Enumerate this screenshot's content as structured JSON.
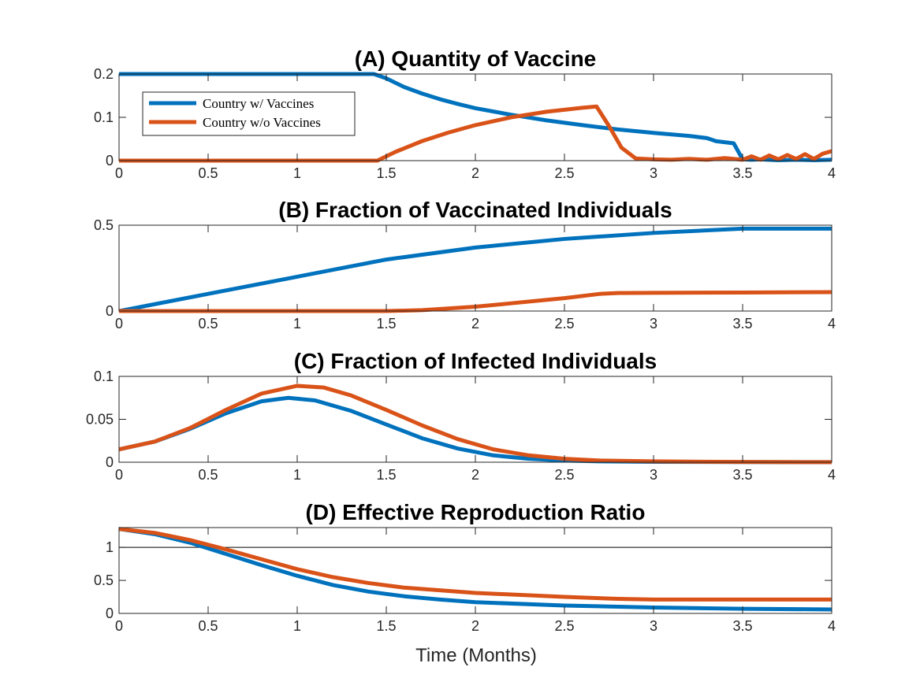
{
  "series_colors": {
    "with": "#0072BD",
    "without": "#D95319"
  },
  "legend": {
    "with": "Country w/ Vaccines",
    "without": "Country w/o Vaccines"
  },
  "xlabel": "Time (Months)",
  "chart_data": [
    {
      "type": "line",
      "title": "(A) Quantity of Vaccine",
      "xlim": [
        0,
        4
      ],
      "ylim": [
        0,
        0.2
      ],
      "xticks": [
        0,
        0.5,
        1,
        1.5,
        2,
        2.5,
        3,
        3.5,
        4
      ],
      "xtick_labels": [
        "0",
        "0.5",
        "1",
        "1.5",
        "2",
        "2.5",
        "3",
        "3.5",
        "4"
      ],
      "yticks": [
        0,
        0.1,
        0.2
      ],
      "ytick_labels": [
        "0",
        "0.1",
        "0.2"
      ],
      "legend_position": "top-left",
      "series": [
        {
          "name": "Country w/ Vaccines",
          "key": "with",
          "x": [
            0,
            1.43,
            1.5,
            1.6,
            1.7,
            1.8,
            1.9,
            2.0,
            2.2,
            2.4,
            2.6,
            2.8,
            3.0,
            3.2,
            3.3,
            3.35,
            3.45,
            3.5,
            3.55,
            3.6,
            3.7,
            3.8,
            3.9,
            4.0
          ],
          "y": [
            0.2,
            0.2,
            0.19,
            0.17,
            0.155,
            0.142,
            0.131,
            0.121,
            0.106,
            0.093,
            0.082,
            0.072,
            0.064,
            0.057,
            0.052,
            0.045,
            0.04,
            0.003,
            0.002,
            0.003,
            0.001,
            0.002,
            0.001,
            0.002
          ]
        },
        {
          "name": "Country w/o Vaccines",
          "key": "without",
          "x": [
            0,
            1.45,
            1.55,
            1.7,
            1.85,
            2.0,
            2.2,
            2.4,
            2.6,
            2.68,
            2.75,
            2.82,
            2.9,
            3.0,
            3.1,
            3.2,
            3.3,
            3.4,
            3.5,
            3.55,
            3.6,
            3.65,
            3.7,
            3.75,
            3.8,
            3.85,
            3.9,
            3.95,
            4.0
          ],
          "y": [
            0,
            0,
            0.02,
            0.045,
            0.065,
            0.082,
            0.1,
            0.113,
            0.122,
            0.125,
            0.08,
            0.03,
            0.005,
            0.003,
            0.002,
            0.004,
            0.002,
            0.006,
            0.002,
            0.01,
            0.002,
            0.012,
            0.003,
            0.013,
            0.004,
            0.015,
            0.004,
            0.016,
            0.022
          ]
        }
      ]
    },
    {
      "type": "line",
      "title": "(B) Fraction of Vaccinated Individuals",
      "xlim": [
        0,
        4
      ],
      "ylim": [
        0,
        0.5
      ],
      "xticks": [
        0,
        0.5,
        1,
        1.5,
        2,
        2.5,
        3,
        3.5,
        4
      ],
      "xtick_labels": [
        "0",
        "0.5",
        "1",
        "1.5",
        "2",
        "2.5",
        "3",
        "3.5",
        "4"
      ],
      "yticks": [
        0,
        0.5
      ],
      "ytick_labels": [
        "0",
        "0.5"
      ],
      "series": [
        {
          "name": "Country w/ Vaccines",
          "key": "with",
          "x": [
            0,
            0.5,
            1,
            1.5,
            2,
            2.5,
            3,
            3.5,
            4
          ],
          "y": [
            0,
            0.1,
            0.2,
            0.3,
            0.37,
            0.42,
            0.455,
            0.48,
            0.48
          ]
        },
        {
          "name": "Country w/o Vaccines",
          "key": "without",
          "x": [
            0,
            1.5,
            1.7,
            2.0,
            2.2,
            2.5,
            2.7,
            2.8,
            3.0,
            3.5,
            4.0
          ],
          "y": [
            0,
            0,
            0.005,
            0.025,
            0.045,
            0.075,
            0.1,
            0.105,
            0.106,
            0.108,
            0.11
          ]
        }
      ]
    },
    {
      "type": "line",
      "title": "(C) Fraction of Infected Individuals",
      "xlim": [
        0,
        4
      ],
      "ylim": [
        0,
        0.1
      ],
      "xticks": [
        0,
        0.5,
        1,
        1.5,
        2,
        2.5,
        3,
        3.5,
        4
      ],
      "xtick_labels": [
        "0",
        "0.5",
        "1",
        "1.5",
        "2",
        "2.5",
        "3",
        "3.5",
        "4"
      ],
      "yticks": [
        0,
        0.05,
        0.1
      ],
      "ytick_labels": [
        "0",
        "0.05",
        "0.1"
      ],
      "series": [
        {
          "name": "Country w/ Vaccines",
          "key": "with",
          "x": [
            0,
            0.2,
            0.4,
            0.6,
            0.8,
            0.95,
            1.1,
            1.3,
            1.5,
            1.7,
            1.9,
            2.1,
            2.3,
            2.5,
            2.7,
            3.0,
            3.5,
            4.0
          ],
          "y": [
            0.015,
            0.024,
            0.039,
            0.057,
            0.071,
            0.075,
            0.072,
            0.06,
            0.044,
            0.028,
            0.016,
            0.008,
            0.004,
            0.002,
            0.001,
            0.0005,
            0.0002,
            0.0001
          ]
        },
        {
          "name": "Country w/o Vaccines",
          "key": "without",
          "x": [
            0,
            0.2,
            0.4,
            0.6,
            0.8,
            1.0,
            1.15,
            1.3,
            1.5,
            1.7,
            1.9,
            2.1,
            2.3,
            2.5,
            2.7,
            3.0,
            3.5,
            4.0
          ],
          "y": [
            0.015,
            0.024,
            0.04,
            0.061,
            0.08,
            0.089,
            0.087,
            0.078,
            0.061,
            0.043,
            0.027,
            0.015,
            0.008,
            0.004,
            0.002,
            0.001,
            0.0003,
            0.0001
          ]
        }
      ]
    },
    {
      "type": "line",
      "title": "(D) Effective Reproduction Ratio",
      "xlim": [
        0,
        4
      ],
      "ylim": [
        0,
        1.3
      ],
      "xticks": [
        0,
        0.5,
        1,
        1.5,
        2,
        2.5,
        3,
        3.5,
        4
      ],
      "xtick_labels": [
        "0",
        "0.5",
        "1",
        "1.5",
        "2",
        "2.5",
        "3",
        "3.5",
        "4"
      ],
      "yticks": [
        0,
        0.5,
        1
      ],
      "ytick_labels": [
        "0",
        "0.5",
        "1"
      ],
      "reference_line_y": 1,
      "series": [
        {
          "name": "Country w/ Vaccines",
          "key": "with",
          "x": [
            0,
            0.2,
            0.4,
            0.6,
            0.8,
            1.0,
            1.2,
            1.4,
            1.6,
            1.8,
            2.0,
            2.5,
            3.0,
            3.5,
            4.0
          ],
          "y": [
            1.28,
            1.2,
            1.07,
            0.9,
            0.73,
            0.57,
            0.43,
            0.33,
            0.26,
            0.21,
            0.17,
            0.12,
            0.09,
            0.07,
            0.06
          ]
        },
        {
          "name": "Country w/o Vaccines",
          "key": "without",
          "x": [
            0,
            0.2,
            0.4,
            0.6,
            0.8,
            1.0,
            1.2,
            1.4,
            1.6,
            1.8,
            2.0,
            2.5,
            2.8,
            3.0,
            3.5,
            4.0
          ],
          "y": [
            1.28,
            1.22,
            1.11,
            0.97,
            0.82,
            0.67,
            0.55,
            0.46,
            0.39,
            0.35,
            0.31,
            0.25,
            0.22,
            0.21,
            0.21,
            0.21
          ]
        }
      ]
    }
  ]
}
